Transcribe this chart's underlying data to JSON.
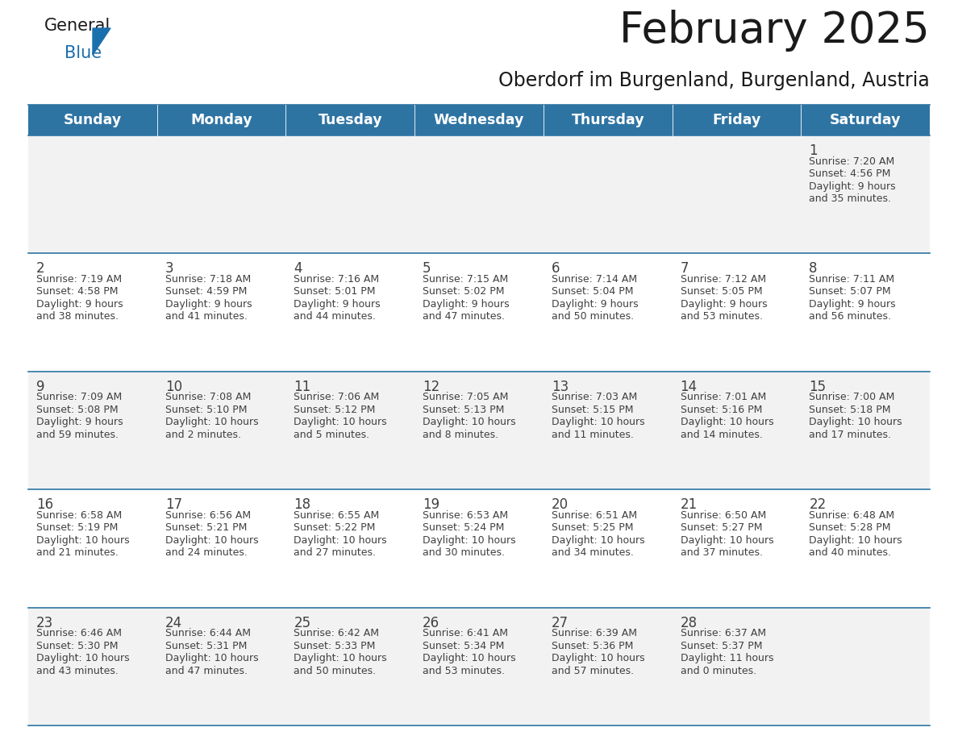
{
  "title": "February 2025",
  "subtitle": "Oberdorf im Burgenland, Burgenland, Austria",
  "header_bg": "#2e74a3",
  "header_text": "#ffffff",
  "cell_bg_light": "#f2f2f2",
  "cell_bg_white": "#ffffff",
  "day_names": [
    "Sunday",
    "Monday",
    "Tuesday",
    "Wednesday",
    "Thursday",
    "Friday",
    "Saturday"
  ],
  "days": [
    {
      "day": 1,
      "col": 6,
      "row": 0,
      "sunrise": "7:20 AM",
      "sunset": "4:56 PM",
      "daylight_h": "9 hours",
      "daylight_m": "35 minutes"
    },
    {
      "day": 2,
      "col": 0,
      "row": 1,
      "sunrise": "7:19 AM",
      "sunset": "4:58 PM",
      "daylight_h": "9 hours",
      "daylight_m": "38 minutes"
    },
    {
      "day": 3,
      "col": 1,
      "row": 1,
      "sunrise": "7:18 AM",
      "sunset": "4:59 PM",
      "daylight_h": "9 hours",
      "daylight_m": "41 minutes"
    },
    {
      "day": 4,
      "col": 2,
      "row": 1,
      "sunrise": "7:16 AM",
      "sunset": "5:01 PM",
      "daylight_h": "9 hours",
      "daylight_m": "44 minutes"
    },
    {
      "day": 5,
      "col": 3,
      "row": 1,
      "sunrise": "7:15 AM",
      "sunset": "5:02 PM",
      "daylight_h": "9 hours",
      "daylight_m": "47 minutes"
    },
    {
      "day": 6,
      "col": 4,
      "row": 1,
      "sunrise": "7:14 AM",
      "sunset": "5:04 PM",
      "daylight_h": "9 hours",
      "daylight_m": "50 minutes"
    },
    {
      "day": 7,
      "col": 5,
      "row": 1,
      "sunrise": "7:12 AM",
      "sunset": "5:05 PM",
      "daylight_h": "9 hours",
      "daylight_m": "53 minutes"
    },
    {
      "day": 8,
      "col": 6,
      "row": 1,
      "sunrise": "7:11 AM",
      "sunset": "5:07 PM",
      "daylight_h": "9 hours",
      "daylight_m": "56 minutes"
    },
    {
      "day": 9,
      "col": 0,
      "row": 2,
      "sunrise": "7:09 AM",
      "sunset": "5:08 PM",
      "daylight_h": "9 hours",
      "daylight_m": "59 minutes"
    },
    {
      "day": 10,
      "col": 1,
      "row": 2,
      "sunrise": "7:08 AM",
      "sunset": "5:10 PM",
      "daylight_h": "10 hours",
      "daylight_m": "2 minutes"
    },
    {
      "day": 11,
      "col": 2,
      "row": 2,
      "sunrise": "7:06 AM",
      "sunset": "5:12 PM",
      "daylight_h": "10 hours",
      "daylight_m": "5 minutes"
    },
    {
      "day": 12,
      "col": 3,
      "row": 2,
      "sunrise": "7:05 AM",
      "sunset": "5:13 PM",
      "daylight_h": "10 hours",
      "daylight_m": "8 minutes"
    },
    {
      "day": 13,
      "col": 4,
      "row": 2,
      "sunrise": "7:03 AM",
      "sunset": "5:15 PM",
      "daylight_h": "10 hours",
      "daylight_m": "11 minutes"
    },
    {
      "day": 14,
      "col": 5,
      "row": 2,
      "sunrise": "7:01 AM",
      "sunset": "5:16 PM",
      "daylight_h": "10 hours",
      "daylight_m": "14 minutes"
    },
    {
      "day": 15,
      "col": 6,
      "row": 2,
      "sunrise": "7:00 AM",
      "sunset": "5:18 PM",
      "daylight_h": "10 hours",
      "daylight_m": "17 minutes"
    },
    {
      "day": 16,
      "col": 0,
      "row": 3,
      "sunrise": "6:58 AM",
      "sunset": "5:19 PM",
      "daylight_h": "10 hours",
      "daylight_m": "21 minutes"
    },
    {
      "day": 17,
      "col": 1,
      "row": 3,
      "sunrise": "6:56 AM",
      "sunset": "5:21 PM",
      "daylight_h": "10 hours",
      "daylight_m": "24 minutes"
    },
    {
      "day": 18,
      "col": 2,
      "row": 3,
      "sunrise": "6:55 AM",
      "sunset": "5:22 PM",
      "daylight_h": "10 hours",
      "daylight_m": "27 minutes"
    },
    {
      "day": 19,
      "col": 3,
      "row": 3,
      "sunrise": "6:53 AM",
      "sunset": "5:24 PM",
      "daylight_h": "10 hours",
      "daylight_m": "30 minutes"
    },
    {
      "day": 20,
      "col": 4,
      "row": 3,
      "sunrise": "6:51 AM",
      "sunset": "5:25 PM",
      "daylight_h": "10 hours",
      "daylight_m": "34 minutes"
    },
    {
      "day": 21,
      "col": 5,
      "row": 3,
      "sunrise": "6:50 AM",
      "sunset": "5:27 PM",
      "daylight_h": "10 hours",
      "daylight_m": "37 minutes"
    },
    {
      "day": 22,
      "col": 6,
      "row": 3,
      "sunrise": "6:48 AM",
      "sunset": "5:28 PM",
      "daylight_h": "10 hours",
      "daylight_m": "40 minutes"
    },
    {
      "day": 23,
      "col": 0,
      "row": 4,
      "sunrise": "6:46 AM",
      "sunset": "5:30 PM",
      "daylight_h": "10 hours",
      "daylight_m": "43 minutes"
    },
    {
      "day": 24,
      "col": 1,
      "row": 4,
      "sunrise": "6:44 AM",
      "sunset": "5:31 PM",
      "daylight_h": "10 hours",
      "daylight_m": "47 minutes"
    },
    {
      "day": 25,
      "col": 2,
      "row": 4,
      "sunrise": "6:42 AM",
      "sunset": "5:33 PM",
      "daylight_h": "10 hours",
      "daylight_m": "50 minutes"
    },
    {
      "day": 26,
      "col": 3,
      "row": 4,
      "sunrise": "6:41 AM",
      "sunset": "5:34 PM",
      "daylight_h": "10 hours",
      "daylight_m": "53 minutes"
    },
    {
      "day": 27,
      "col": 4,
      "row": 4,
      "sunrise": "6:39 AM",
      "sunset": "5:36 PM",
      "daylight_h": "10 hours",
      "daylight_m": "57 minutes"
    },
    {
      "day": 28,
      "col": 5,
      "row": 4,
      "sunrise": "6:37 AM",
      "sunset": "5:37 PM",
      "daylight_h": "11 hours",
      "daylight_m": "0 minutes"
    }
  ],
  "n_rows": 5,
  "n_cols": 7,
  "title_fontsize": 38,
  "subtitle_fontsize": 17,
  "header_fontsize": 12.5,
  "day_num_fontsize": 12,
  "cell_text_fontsize": 9,
  "logo_color_general": "#1a1a1a",
  "logo_color_blue": "#1a6fad",
  "line_color": "#2e74a3",
  "text_color": "#404040"
}
